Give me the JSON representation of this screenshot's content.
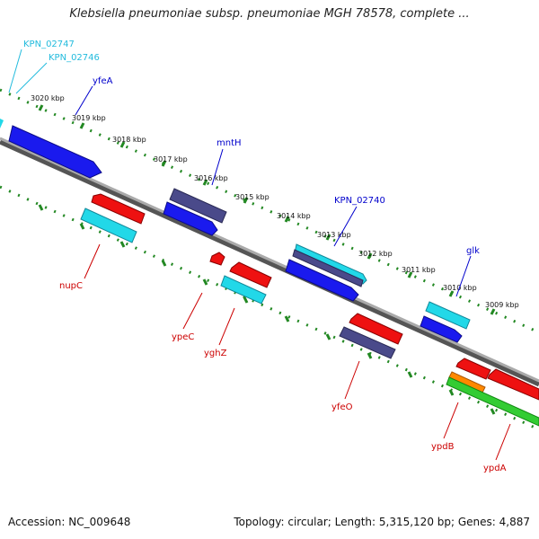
{
  "title": "Klebsiella pneumoniae subsp. pneumoniae MGH 78578, complete ...",
  "footer": {
    "accession": "Accession: NC_009648",
    "stats": "Topology: circular; Length: 5,315,120 bp; Genes: 4,887"
  },
  "colors": {
    "cds_forward": "#1a1aee",
    "cds_reverse": "#ee1111",
    "cds_alt": "#4a4a8a",
    "rna": "#22d8e8",
    "green": "#33cc33",
    "orange": "#ff8800",
    "backbone": "#888888",
    "tick": "#228822",
    "label_blue": "#0000cc",
    "label_red": "#cc0000",
    "label_cyan": "#22bbdd"
  },
  "scale_labels": [
    "3020 kbp",
    "3019 kbp",
    "3018 kbp",
    "3017 kbp",
    "3016 kbp",
    "3015 kbp",
    "3014 kbp",
    "3013 kbp",
    "3012 kbp",
    "3011 kbp",
    "3010 kbp",
    "3009 kbp"
  ],
  "gene_labels": {
    "kpn_02747": "KPN_02747",
    "kpn_02746": "KPN_02746",
    "yfea": "yfeA",
    "mnth": "mntH",
    "kpn_02740": "KPN_02740",
    "glk": "glk",
    "nupc": "nupC",
    "ypec": "ypeC",
    "yghz": "yghZ",
    "yfeo": "yfeO",
    "ypdb": "ypdB",
    "ypda": "ypdA"
  }
}
